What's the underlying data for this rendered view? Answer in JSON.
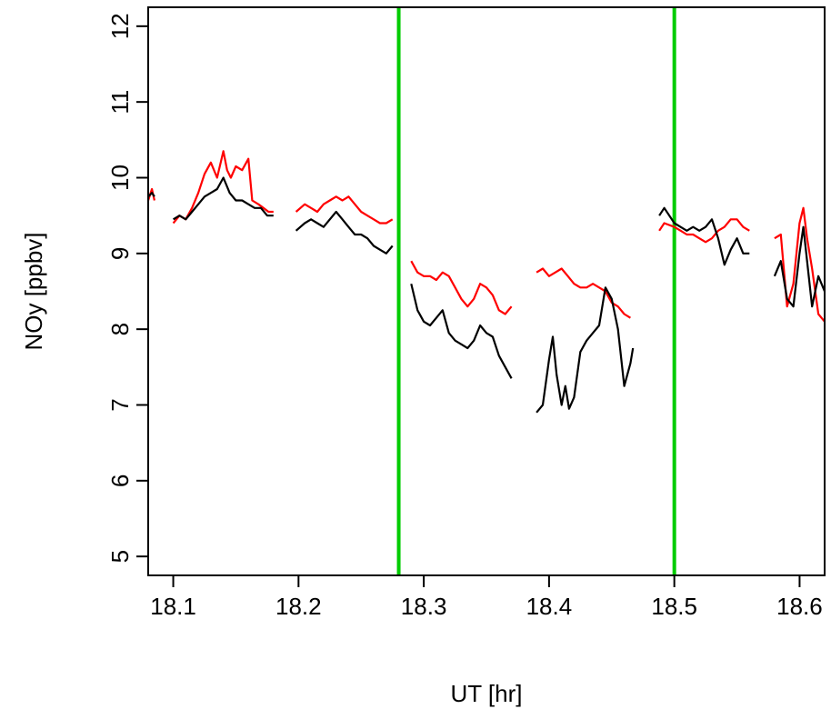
{
  "chart_data": {
    "type": "line",
    "title": "",
    "xlabel": "UT [hr]",
    "ylabel": "NOy [ppbv]",
    "xlim": [
      18.08,
      18.62
    ],
    "ylim": [
      4.75,
      12.25
    ],
    "xticks": [
      18.1,
      18.2,
      18.3,
      18.4,
      18.5,
      18.6
    ],
    "xtick_labels": [
      "18.1",
      "18.2",
      "18.3",
      "18.4",
      "18.5",
      "18.6"
    ],
    "yticks": [
      5,
      6,
      7,
      8,
      9,
      10,
      11,
      12
    ],
    "ytick_labels": [
      "5",
      "6",
      "7",
      "8",
      "9",
      "10",
      "11",
      "12"
    ],
    "grid": false,
    "vlines": [
      {
        "x": 18.28,
        "color": "#00cc00"
      },
      {
        "x": 18.5,
        "color": "#00cc00"
      }
    ],
    "series": [
      {
        "color": "#ff0000",
        "segments": [
          [
            [
              18.08,
              9.7
            ],
            [
              18.083,
              9.85
            ],
            [
              18.085,
              9.7
            ]
          ],
          [
            [
              18.1,
              9.4
            ],
            [
              18.105,
              9.5
            ],
            [
              18.11,
              9.45
            ],
            [
              18.115,
              9.6
            ],
            [
              18.12,
              9.8
            ],
            [
              18.125,
              10.05
            ],
            [
              18.13,
              10.2
            ],
            [
              18.135,
              10.0
            ],
            [
              18.14,
              10.35
            ],
            [
              18.143,
              10.1
            ],
            [
              18.146,
              10.0
            ],
            [
              18.15,
              10.15
            ],
            [
              18.155,
              10.1
            ],
            [
              18.16,
              10.25
            ],
            [
              18.163,
              9.7
            ],
            [
              18.168,
              9.65
            ],
            [
              18.172,
              9.6
            ],
            [
              18.176,
              9.55
            ],
            [
              18.18,
              9.55
            ]
          ],
          [
            [
              18.198,
              9.55
            ],
            [
              18.205,
              9.65
            ],
            [
              18.21,
              9.6
            ],
            [
              18.215,
              9.55
            ],
            [
              18.22,
              9.65
            ],
            [
              18.225,
              9.7
            ],
            [
              18.23,
              9.75
            ],
            [
              18.235,
              9.7
            ],
            [
              18.24,
              9.75
            ],
            [
              18.245,
              9.65
            ],
            [
              18.25,
              9.55
            ],
            [
              18.255,
              9.5
            ],
            [
              18.26,
              9.45
            ],
            [
              18.265,
              9.4
            ],
            [
              18.27,
              9.4
            ],
            [
              18.275,
              9.45
            ]
          ],
          [
            [
              18.29,
              8.9
            ],
            [
              18.295,
              8.75
            ],
            [
              18.3,
              8.7
            ],
            [
              18.305,
              8.7
            ],
            [
              18.31,
              8.65
            ],
            [
              18.315,
              8.75
            ],
            [
              18.32,
              8.7
            ],
            [
              18.325,
              8.55
            ],
            [
              18.33,
              8.4
            ],
            [
              18.335,
              8.3
            ],
            [
              18.34,
              8.4
            ],
            [
              18.345,
              8.6
            ],
            [
              18.35,
              8.55
            ],
            [
              18.355,
              8.45
            ],
            [
              18.36,
              8.25
            ],
            [
              18.365,
              8.2
            ],
            [
              18.37,
              8.3
            ]
          ],
          [
            [
              18.39,
              8.75
            ],
            [
              18.395,
              8.8
            ],
            [
              18.4,
              8.7
            ],
            [
              18.405,
              8.75
            ],
            [
              18.41,
              8.8
            ],
            [
              18.415,
              8.7
            ],
            [
              18.42,
              8.6
            ],
            [
              18.425,
              8.55
            ],
            [
              18.43,
              8.55
            ],
            [
              18.435,
              8.6
            ],
            [
              18.44,
              8.55
            ],
            [
              18.445,
              8.5
            ],
            [
              18.45,
              8.35
            ],
            [
              18.455,
              8.3
            ],
            [
              18.46,
              8.2
            ],
            [
              18.465,
              8.15
            ]
          ],
          [
            [
              18.488,
              9.3
            ],
            [
              18.492,
              9.4
            ],
            [
              18.5,
              9.35
            ],
            [
              18.505,
              9.3
            ],
            [
              18.51,
              9.25
            ],
            [
              18.515,
              9.25
            ],
            [
              18.52,
              9.2
            ],
            [
              18.525,
              9.15
            ],
            [
              18.53,
              9.2
            ],
            [
              18.535,
              9.3
            ],
            [
              18.54,
              9.35
            ],
            [
              18.545,
              9.45
            ],
            [
              18.55,
              9.45
            ],
            [
              18.555,
              9.35
            ],
            [
              18.56,
              9.3
            ]
          ],
          [
            [
              18.58,
              9.2
            ],
            [
              18.585,
              9.25
            ],
            [
              18.59,
              8.3
            ],
            [
              18.595,
              8.6
            ],
            [
              18.6,
              9.4
            ],
            [
              18.603,
              9.6
            ],
            [
              18.606,
              9.2
            ],
            [
              18.61,
              8.8
            ],
            [
              18.615,
              8.2
            ],
            [
              18.62,
              8.1
            ]
          ]
        ]
      },
      {
        "color": "#000000",
        "segments": [
          [
            [
              18.08,
              9.75
            ],
            [
              18.083,
              9.8
            ],
            [
              18.085,
              9.75
            ]
          ],
          [
            [
              18.1,
              9.45
            ],
            [
              18.105,
              9.5
            ],
            [
              18.11,
              9.45
            ],
            [
              18.115,
              9.55
            ],
            [
              18.12,
              9.65
            ],
            [
              18.125,
              9.75
            ],
            [
              18.13,
              9.8
            ],
            [
              18.135,
              9.85
            ],
            [
              18.14,
              10.0
            ],
            [
              18.145,
              9.8
            ],
            [
              18.15,
              9.7
            ],
            [
              18.155,
              9.7
            ],
            [
              18.16,
              9.65
            ],
            [
              18.165,
              9.6
            ],
            [
              18.17,
              9.6
            ],
            [
              18.175,
              9.5
            ],
            [
              18.18,
              9.5
            ]
          ],
          [
            [
              18.198,
              9.3
            ],
            [
              18.205,
              9.4
            ],
            [
              18.21,
              9.45
            ],
            [
              18.215,
              9.4
            ],
            [
              18.22,
              9.35
            ],
            [
              18.225,
              9.45
            ],
            [
              18.23,
              9.55
            ],
            [
              18.235,
              9.45
            ],
            [
              18.24,
              9.35
            ],
            [
              18.245,
              9.25
            ],
            [
              18.25,
              9.25
            ],
            [
              18.255,
              9.2
            ],
            [
              18.26,
              9.1
            ],
            [
              18.265,
              9.05
            ],
            [
              18.27,
              9.0
            ],
            [
              18.275,
              9.1
            ]
          ],
          [
            [
              18.29,
              8.6
            ],
            [
              18.295,
              8.25
            ],
            [
              18.3,
              8.1
            ],
            [
              18.305,
              8.05
            ],
            [
              18.31,
              8.15
            ],
            [
              18.315,
              8.25
            ],
            [
              18.32,
              7.95
            ],
            [
              18.325,
              7.85
            ],
            [
              18.33,
              7.8
            ],
            [
              18.335,
              7.75
            ],
            [
              18.34,
              7.85
            ],
            [
              18.345,
              8.05
            ],
            [
              18.35,
              7.95
            ],
            [
              18.355,
              7.9
            ],
            [
              18.36,
              7.65
            ],
            [
              18.365,
              7.5
            ],
            [
              18.37,
              7.35
            ]
          ],
          [
            [
              18.39,
              6.9
            ],
            [
              18.395,
              7.0
            ],
            [
              18.4,
              7.6
            ],
            [
              18.403,
              7.9
            ],
            [
              18.406,
              7.4
            ],
            [
              18.41,
              7.0
            ],
            [
              18.413,
              7.25
            ],
            [
              18.416,
              6.95
            ],
            [
              18.42,
              7.1
            ],
            [
              18.425,
              7.7
            ],
            [
              18.43,
              7.85
            ],
            [
              18.435,
              7.95
            ],
            [
              18.44,
              8.05
            ],
            [
              18.445,
              8.55
            ],
            [
              18.45,
              8.4
            ],
            [
              18.455,
              8.0
            ],
            [
              18.46,
              7.25
            ],
            [
              18.465,
              7.55
            ],
            [
              18.467,
              7.75
            ]
          ],
          [
            [
              18.488,
              9.5
            ],
            [
              18.492,
              9.6
            ],
            [
              18.5,
              9.4
            ],
            [
              18.505,
              9.35
            ],
            [
              18.51,
              9.3
            ],
            [
              18.515,
              9.35
            ],
            [
              18.52,
              9.3
            ],
            [
              18.525,
              9.35
            ],
            [
              18.53,
              9.45
            ],
            [
              18.535,
              9.2
            ],
            [
              18.54,
              8.85
            ],
            [
              18.545,
              9.05
            ],
            [
              18.55,
              9.2
            ],
            [
              18.555,
              9.0
            ],
            [
              18.56,
              9.0
            ]
          ],
          [
            [
              18.58,
              8.7
            ],
            [
              18.585,
              8.9
            ],
            [
              18.59,
              8.4
            ],
            [
              18.595,
              8.3
            ],
            [
              18.6,
              9.0
            ],
            [
              18.603,
              9.35
            ],
            [
              18.606,
              8.9
            ],
            [
              18.61,
              8.3
            ],
            [
              18.615,
              8.7
            ],
            [
              18.62,
              8.5
            ]
          ]
        ]
      }
    ]
  }
}
